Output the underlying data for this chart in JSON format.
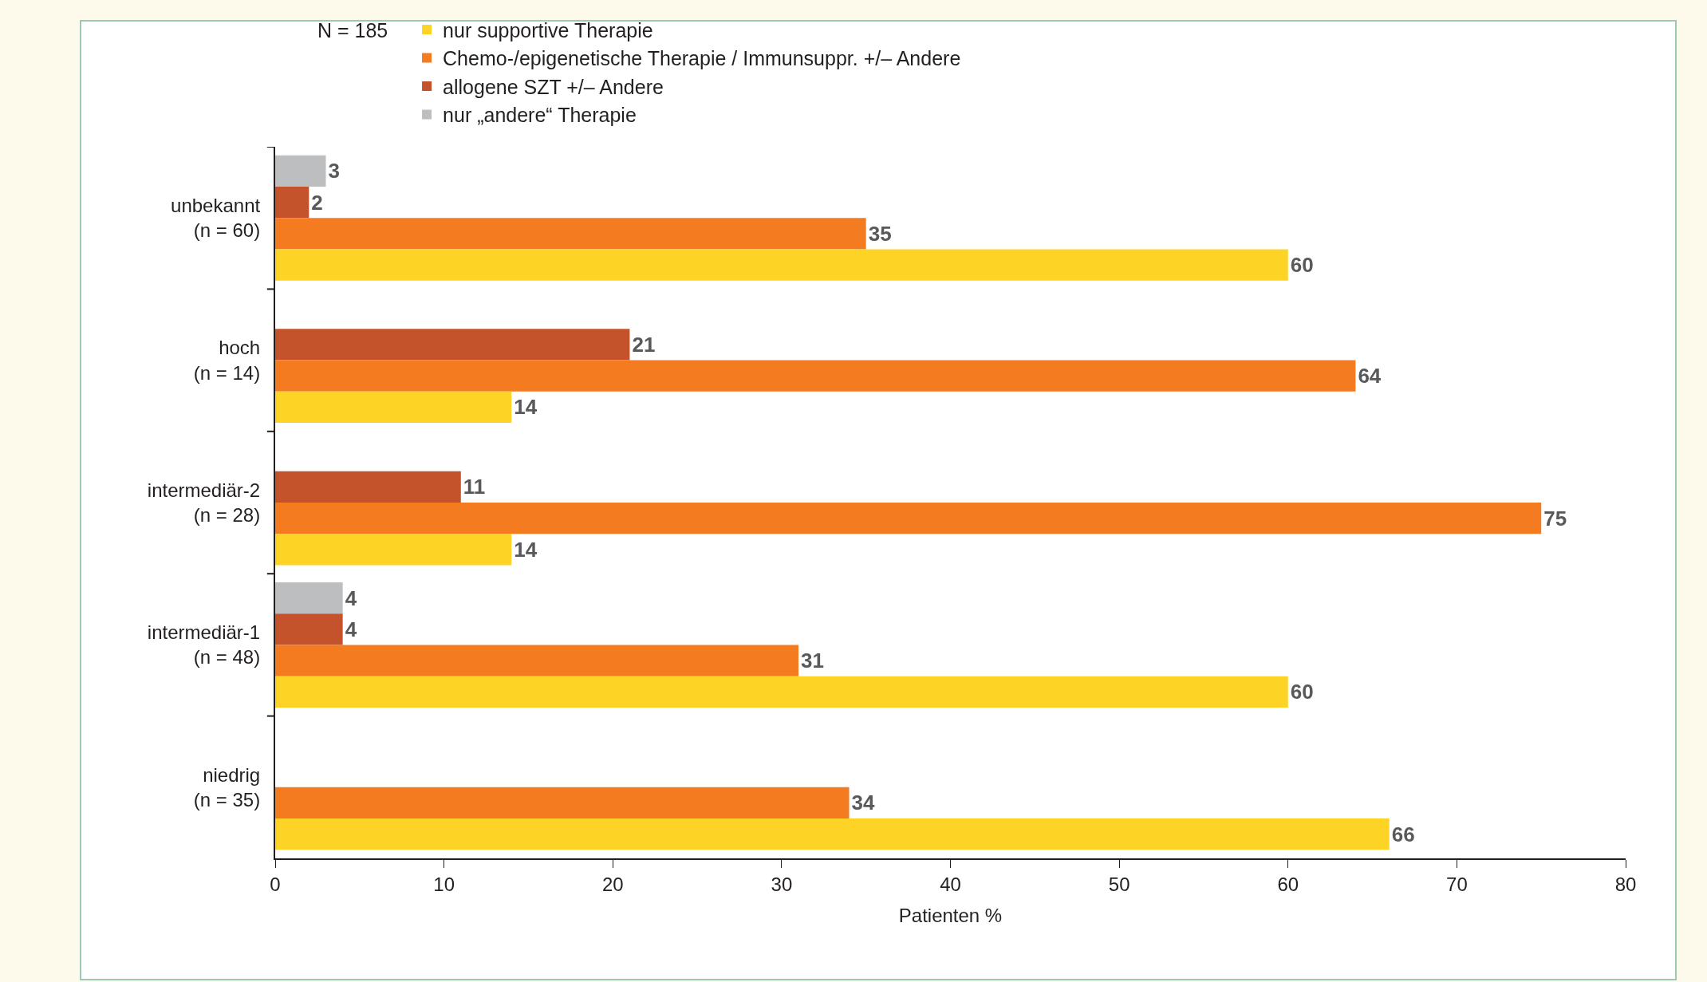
{
  "chart_data": {
    "type": "bar",
    "orientation": "horizontal",
    "xlabel": "Patienten %",
    "legend_title": "N = 185",
    "legend": "top",
    "data_labels": true,
    "grid": false,
    "categories": [
      "unbekannt\n(n = 60)",
      "hoch\n(n = 14)",
      "intermediär-2\n(n = 28)",
      "intermediär-1\n(n = 48)",
      "niedrig\n(n = 35)"
    ],
    "xlim": [
      0,
      80
    ],
    "xticks": [
      0,
      10,
      20,
      30,
      40,
      50,
      60,
      70,
      80
    ],
    "series": [
      {
        "name": "nur supportive Therapie",
        "color": "#fdd326",
        "values": [
          60,
          14,
          14,
          60,
          66
        ]
      },
      {
        "name": "Chemo-/epigenetische Therapie / Immunsuppr. +/– Andere",
        "color": "#f47b20",
        "values": [
          35,
          64,
          75,
          31,
          34
        ]
      },
      {
        "name": "allogene SZT +/– Andere",
        "color": "#c4532b",
        "values": [
          2,
          21,
          11,
          4,
          null
        ]
      },
      {
        "name": "nur „andere“ Therapie",
        "color": "#bcbec0",
        "values": [
          3,
          null,
          null,
          4,
          null
        ]
      }
    ]
  }
}
